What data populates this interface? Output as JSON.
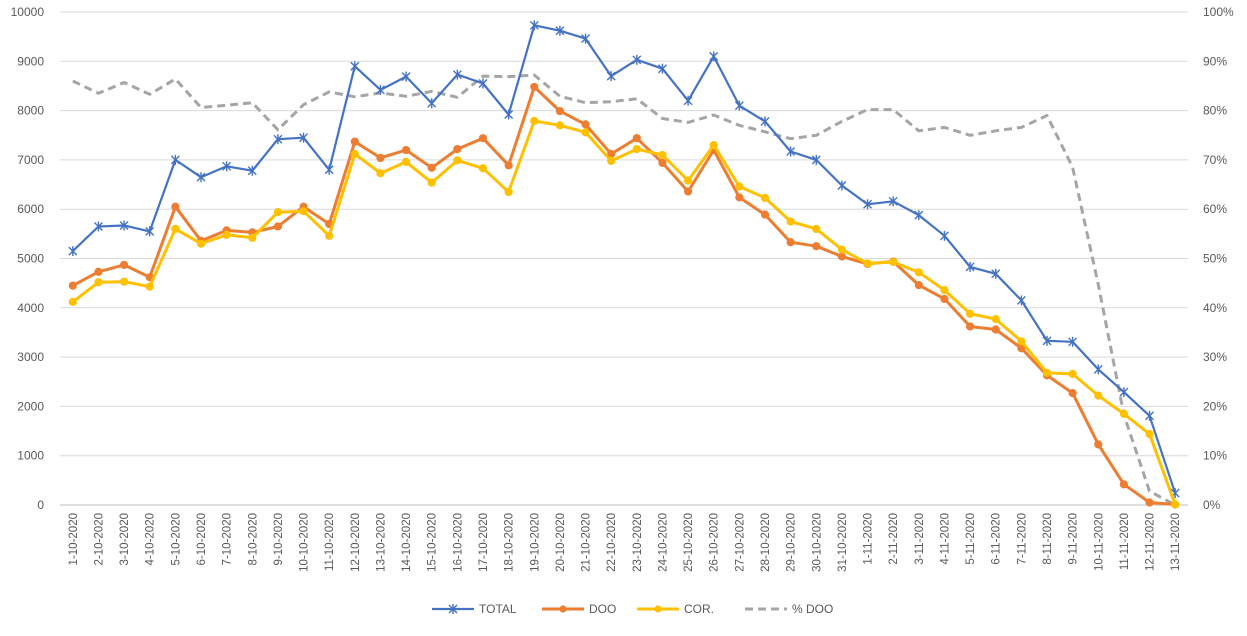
{
  "chart_data": {
    "type": "line",
    "title": "",
    "xlabel": "",
    "ylabel": "",
    "ylim": [
      0,
      10000
    ],
    "y2lim": [
      0,
      100
    ],
    "grid": true,
    "legend_position": "bottom",
    "y_ticks": [
      "0",
      "1000",
      "2000",
      "3000",
      "4000",
      "5000",
      "6000",
      "7000",
      "8000",
      "9000",
      "10000"
    ],
    "y2_ticks": [
      "0%",
      "10%",
      "20%",
      "30%",
      "40%",
      "50%",
      "60%",
      "70%",
      "80%",
      "90%",
      "100%"
    ],
    "categories": [
      "1-10-2020",
      "2-10-2020",
      "3-10-2020",
      "4-10-2020",
      "5-10-2020",
      "6-10-2020",
      "7-10-2020",
      "8-10-2020",
      "9-10-2020",
      "10-10-2020",
      "11-10-2020",
      "12-10-2020",
      "13-10-2020",
      "14-10-2020",
      "15-10-2020",
      "16-10-2020",
      "17-10-2020",
      "18-10-2020",
      "19-10-2020",
      "20-10-2020",
      "21-10-2020",
      "22-10-2020",
      "23-10-2020",
      "24-10-2020",
      "25-10-2020",
      "26-10-2020",
      "27-10-2020",
      "28-10-2020",
      "29-10-2020",
      "30-10-2020",
      "31-10-2020",
      "1-11-2020",
      "2-11-2020",
      "3-11-2020",
      "4-11-2020",
      "5-11-2020",
      "6-11-2020",
      "7-11-2020",
      "8-11-2020",
      "9-11-2020",
      "10-11-2020",
      "11-11-2020",
      "12-11-2020",
      "13-11-2020"
    ],
    "series": [
      {
        "name": "TOTAL",
        "axis": "left",
        "color": "#4472C4",
        "marker": "star",
        "values": [
          5150,
          5650,
          5670,
          5550,
          7000,
          6650,
          6870,
          6780,
          7420,
          7450,
          6800,
          8900,
          8420,
          8690,
          8150,
          8730,
          8550,
          7920,
          9730,
          9620,
          9460,
          8700,
          9030,
          8850,
          8200,
          9100,
          8100,
          7780,
          7170,
          7000,
          6480,
          6100,
          6160,
          5880,
          5460,
          4830,
          4690,
          4150,
          3330,
          3310,
          2750,
          2290,
          1810,
          240
        ]
      },
      {
        "name": "DOO",
        "axis": "left",
        "color": "#ED7D31",
        "marker": "circle",
        "values": [
          4450,
          4730,
          4870,
          4620,
          6050,
          5360,
          5570,
          5530,
          5650,
          6050,
          5700,
          7370,
          7040,
          7200,
          6840,
          7220,
          7440,
          6890,
          8480,
          7990,
          7720,
          7120,
          7440,
          6940,
          6360,
          7200,
          6240,
          5890,
          5330,
          5250,
          5040,
          4890,
          4940,
          4460,
          4180,
          3620,
          3560,
          3180,
          2630,
          2270,
          1230,
          420,
          50,
          10
        ]
      },
      {
        "name": "COR.",
        "axis": "left",
        "color": "#FFC000",
        "marker": "circle",
        "values": [
          4120,
          4520,
          4530,
          4430,
          5600,
          5300,
          5480,
          5420,
          5940,
          5960,
          5460,
          7120,
          6730,
          6960,
          6540,
          6990,
          6830,
          6350,
          7790,
          7700,
          7560,
          6980,
          7220,
          7100,
          6580,
          7300,
          6460,
          6230,
          5750,
          5600,
          5180,
          4900,
          4930,
          4720,
          4360,
          3880,
          3770,
          3320,
          2680,
          2660,
          2220,
          1850,
          1440,
          10
        ]
      },
      {
        "name": "% DOO",
        "axis": "right",
        "color": "#A5A5A5",
        "marker": "none",
        "dash": true,
        "values": [
          86,
          83.5,
          85.7,
          83.3,
          86.4,
          80.6,
          81.1,
          81.6,
          76.1,
          81.2,
          83.8,
          82.8,
          83.6,
          82.9,
          83.9,
          82.7,
          87.0,
          86.9,
          87.2,
          82.9,
          81.6,
          81.8,
          82.4,
          78.4,
          77.6,
          79.1,
          77.0,
          75.7,
          74.3,
          75.0,
          77.8,
          80.2,
          80.2,
          75.9,
          76.6,
          75.0,
          75.9,
          76.6,
          79.0,
          68.5,
          44.7,
          18.3,
          2.8,
          0
        ]
      }
    ]
  }
}
